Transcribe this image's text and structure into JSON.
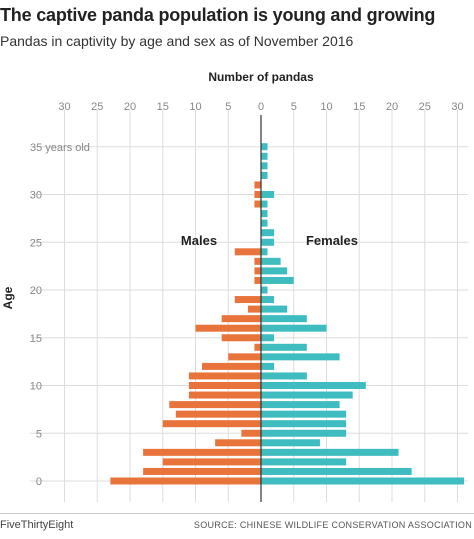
{
  "header": {
    "title": "The captive panda population is young and growing",
    "subtitle": "Pandas in captivity by age and sex as of November 2016"
  },
  "footer": {
    "credit": "FiveThirtyEight",
    "source": "SOURCE: CHINESE WILDLIFE CONSERVATION ASSOCIATION"
  },
  "colors": {
    "males": "#e8743b",
    "females": "#3fbcc0",
    "grid": "#dddddd",
    "axis": "#333333"
  },
  "chart_data": {
    "type": "bar",
    "orientation": "horizontal",
    "title": "Number of pandas",
    "xlabel": "Number of pandas",
    "ylabel": "Age",
    "x_tick_labels": [
      "30",
      "25",
      "20",
      "15",
      "10",
      "5",
      "0",
      "5",
      "10",
      "15",
      "20",
      "25",
      "30"
    ],
    "y_tick_labels": [
      "35 years old",
      "30",
      "25",
      "20",
      "15",
      "10",
      "5",
      "0"
    ],
    "xlim": [
      -30,
      31
    ],
    "ylim": [
      0,
      36
    ],
    "grid": true,
    "categories": [
      0,
      1,
      2,
      3,
      4,
      5,
      6,
      7,
      8,
      9,
      10,
      11,
      12,
      13,
      14,
      15,
      16,
      17,
      18,
      19,
      20,
      21,
      22,
      23,
      24,
      25,
      26,
      27,
      28,
      29,
      30,
      31,
      32,
      33,
      34,
      35
    ],
    "series": [
      {
        "name": "Males",
        "values": [
          23,
          18,
          15,
          18,
          7,
          3,
          15,
          13,
          14,
          11,
          11,
          11,
          9,
          5,
          1,
          6,
          10,
          6,
          2,
          4,
          0,
          1,
          1,
          1,
          4,
          0,
          0,
          0,
          0,
          1,
          1,
          1,
          0,
          0,
          0,
          0
        ]
      },
      {
        "name": "Females",
        "values": [
          31,
          23,
          13,
          21,
          9,
          13,
          13,
          13,
          12,
          14,
          16,
          7,
          2,
          12,
          7,
          2,
          10,
          7,
          4,
          2,
          1,
          5,
          4,
          3,
          1,
          2,
          2,
          1,
          1,
          1,
          2,
          0,
          1,
          1,
          1,
          1
        ]
      }
    ]
  }
}
